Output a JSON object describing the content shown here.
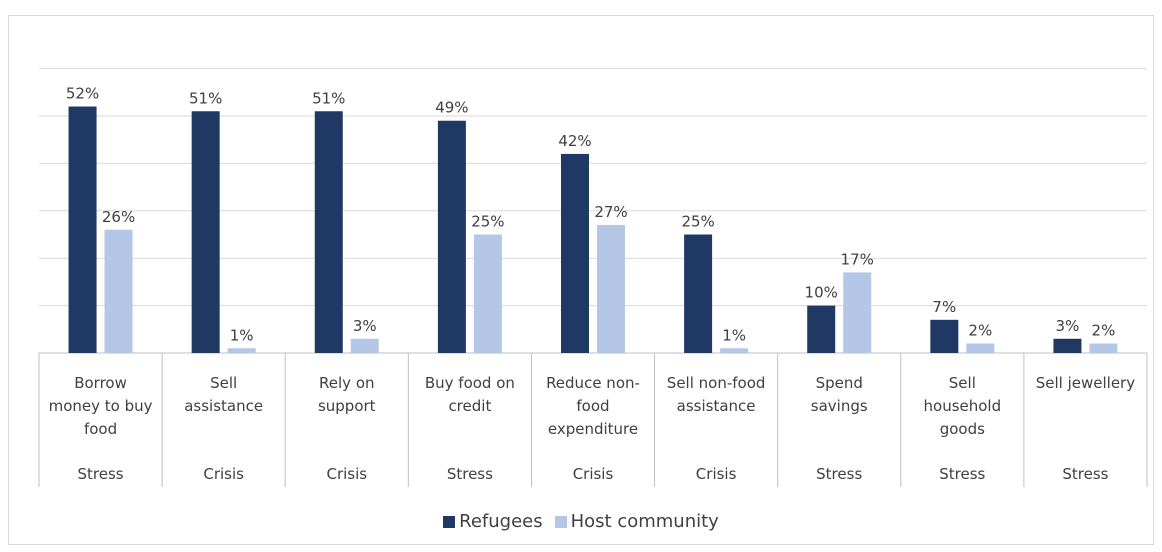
{
  "colors": {
    "refugees": "#1f3864",
    "host": "#b4c7e7"
  },
  "chart_data": {
    "type": "bar",
    "title": "",
    "xlabel": "",
    "ylabel": "",
    "ylim": [
      0,
      60
    ],
    "grid": true,
    "legend_position": "bottom",
    "categories": [
      "Borrow money to buy food",
      "Sell assistance",
      "Rely on support",
      "Buy food on credit",
      "Reduce non-food expenditure",
      "Sell non-food assistance",
      "Spend savings",
      "Sell household goods",
      "Sell jewellery"
    ],
    "category_lines": [
      [
        "Borrow",
        "money to buy",
        "food"
      ],
      [
        "Sell",
        "assistance"
      ],
      [
        "Rely on",
        "support"
      ],
      [
        "Buy food on",
        "credit"
      ],
      [
        "Reduce non-",
        "food",
        "expenditure"
      ],
      [
        "Sell non-food",
        "assistance"
      ],
      [
        "Spend",
        "savings"
      ],
      [
        "Sell",
        "household",
        "goods"
      ],
      [
        "Sell jewellery"
      ]
    ],
    "groups": [
      "Stress",
      "Crisis",
      "Crisis",
      "Stress",
      "Crisis",
      "Crisis",
      "Stress",
      "Stress",
      "Stress"
    ],
    "series": [
      {
        "name": "Refugees",
        "values": [
          52,
          51,
          51,
          49,
          42,
          25,
          10,
          7,
          3
        ],
        "labels": [
          "52%",
          "51%",
          "51%",
          "49%",
          "42%",
          "25%",
          "10%",
          "7%",
          "3%"
        ]
      },
      {
        "name": "Host community",
        "values": [
          26,
          1,
          3,
          25,
          27,
          1,
          17,
          2,
          2
        ],
        "labels": [
          "26%",
          "1%",
          "3%",
          "25%",
          "27%",
          "1%",
          "17%",
          "2%",
          "2%"
        ]
      }
    ]
  }
}
